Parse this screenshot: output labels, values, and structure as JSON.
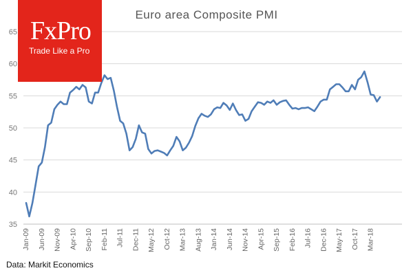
{
  "logo": {
    "name": "FxPro",
    "tagline": "Trade Like a Pro"
  },
  "source": "Data: Markit Economics",
  "colors": {
    "line": "#4f7db7",
    "grid": "#d9d9d9",
    "logo_bg": "#e3251b"
  },
  "chart_data": {
    "type": "line",
    "title": "Euro area Composite PMI",
    "xlabel": "",
    "ylabel": "",
    "ylim": [
      35,
      65
    ],
    "yticks": [
      35,
      40,
      45,
      50,
      55,
      60,
      65
    ],
    "x_tick_labels": [
      "Jan-09",
      "Jun-09",
      "Nov-09",
      "Apr-10",
      "Sep-10",
      "Feb-11",
      "Jul-11",
      "Dec-11",
      "May-12",
      "Oct-12",
      "Mar-13",
      "Aug-13",
      "Jan-14",
      "Jun-14",
      "Nov-14",
      "Apr-15",
      "Sep-15",
      "Feb-16",
      "Jul-16",
      "Dec-16",
      "May-17",
      "Oct-17",
      "Mar-18"
    ],
    "x_start": "Jan-09",
    "series": [
      {
        "name": "Euro area Composite PMI",
        "values": [
          38.3,
          36.2,
          38.3,
          41.1,
          44.0,
          44.6,
          47.0,
          50.4,
          50.8,
          52.9,
          53.6,
          54.1,
          53.7,
          53.7,
          55.5,
          55.9,
          56.4,
          56.0,
          56.7,
          56.3,
          54.1,
          53.8,
          55.5,
          55.5,
          57.0,
          58.2,
          57.6,
          57.8,
          55.8,
          53.3,
          51.1,
          50.7,
          49.1,
          46.5,
          47.0,
          48.3,
          50.4,
          49.3,
          49.1,
          46.7,
          46.0,
          46.4,
          46.5,
          46.3,
          46.1,
          45.7,
          46.5,
          47.2,
          48.6,
          47.9,
          46.5,
          46.9,
          47.7,
          48.7,
          50.3,
          51.5,
          52.2,
          51.9,
          51.7,
          52.1,
          52.9,
          53.2,
          53.1,
          53.9,
          53.5,
          52.8,
          53.8,
          52.8,
          52.0,
          52.1,
          51.1,
          51.4,
          52.6,
          53.3,
          54.0,
          53.9,
          53.6,
          54.1,
          53.9,
          54.3,
          53.6,
          54.0,
          54.2,
          54.3,
          53.6,
          53.0,
          53.1,
          52.9,
          53.1,
          53.1,
          53.2,
          52.9,
          52.6,
          53.3,
          54.1,
          54.4,
          54.4,
          56.0,
          56.4,
          56.8,
          56.8,
          56.3,
          55.7,
          55.7,
          56.7,
          56.0,
          57.5,
          57.9,
          58.8,
          57.1,
          55.2,
          55.1,
          54.1,
          54.8
        ]
      }
    ]
  }
}
